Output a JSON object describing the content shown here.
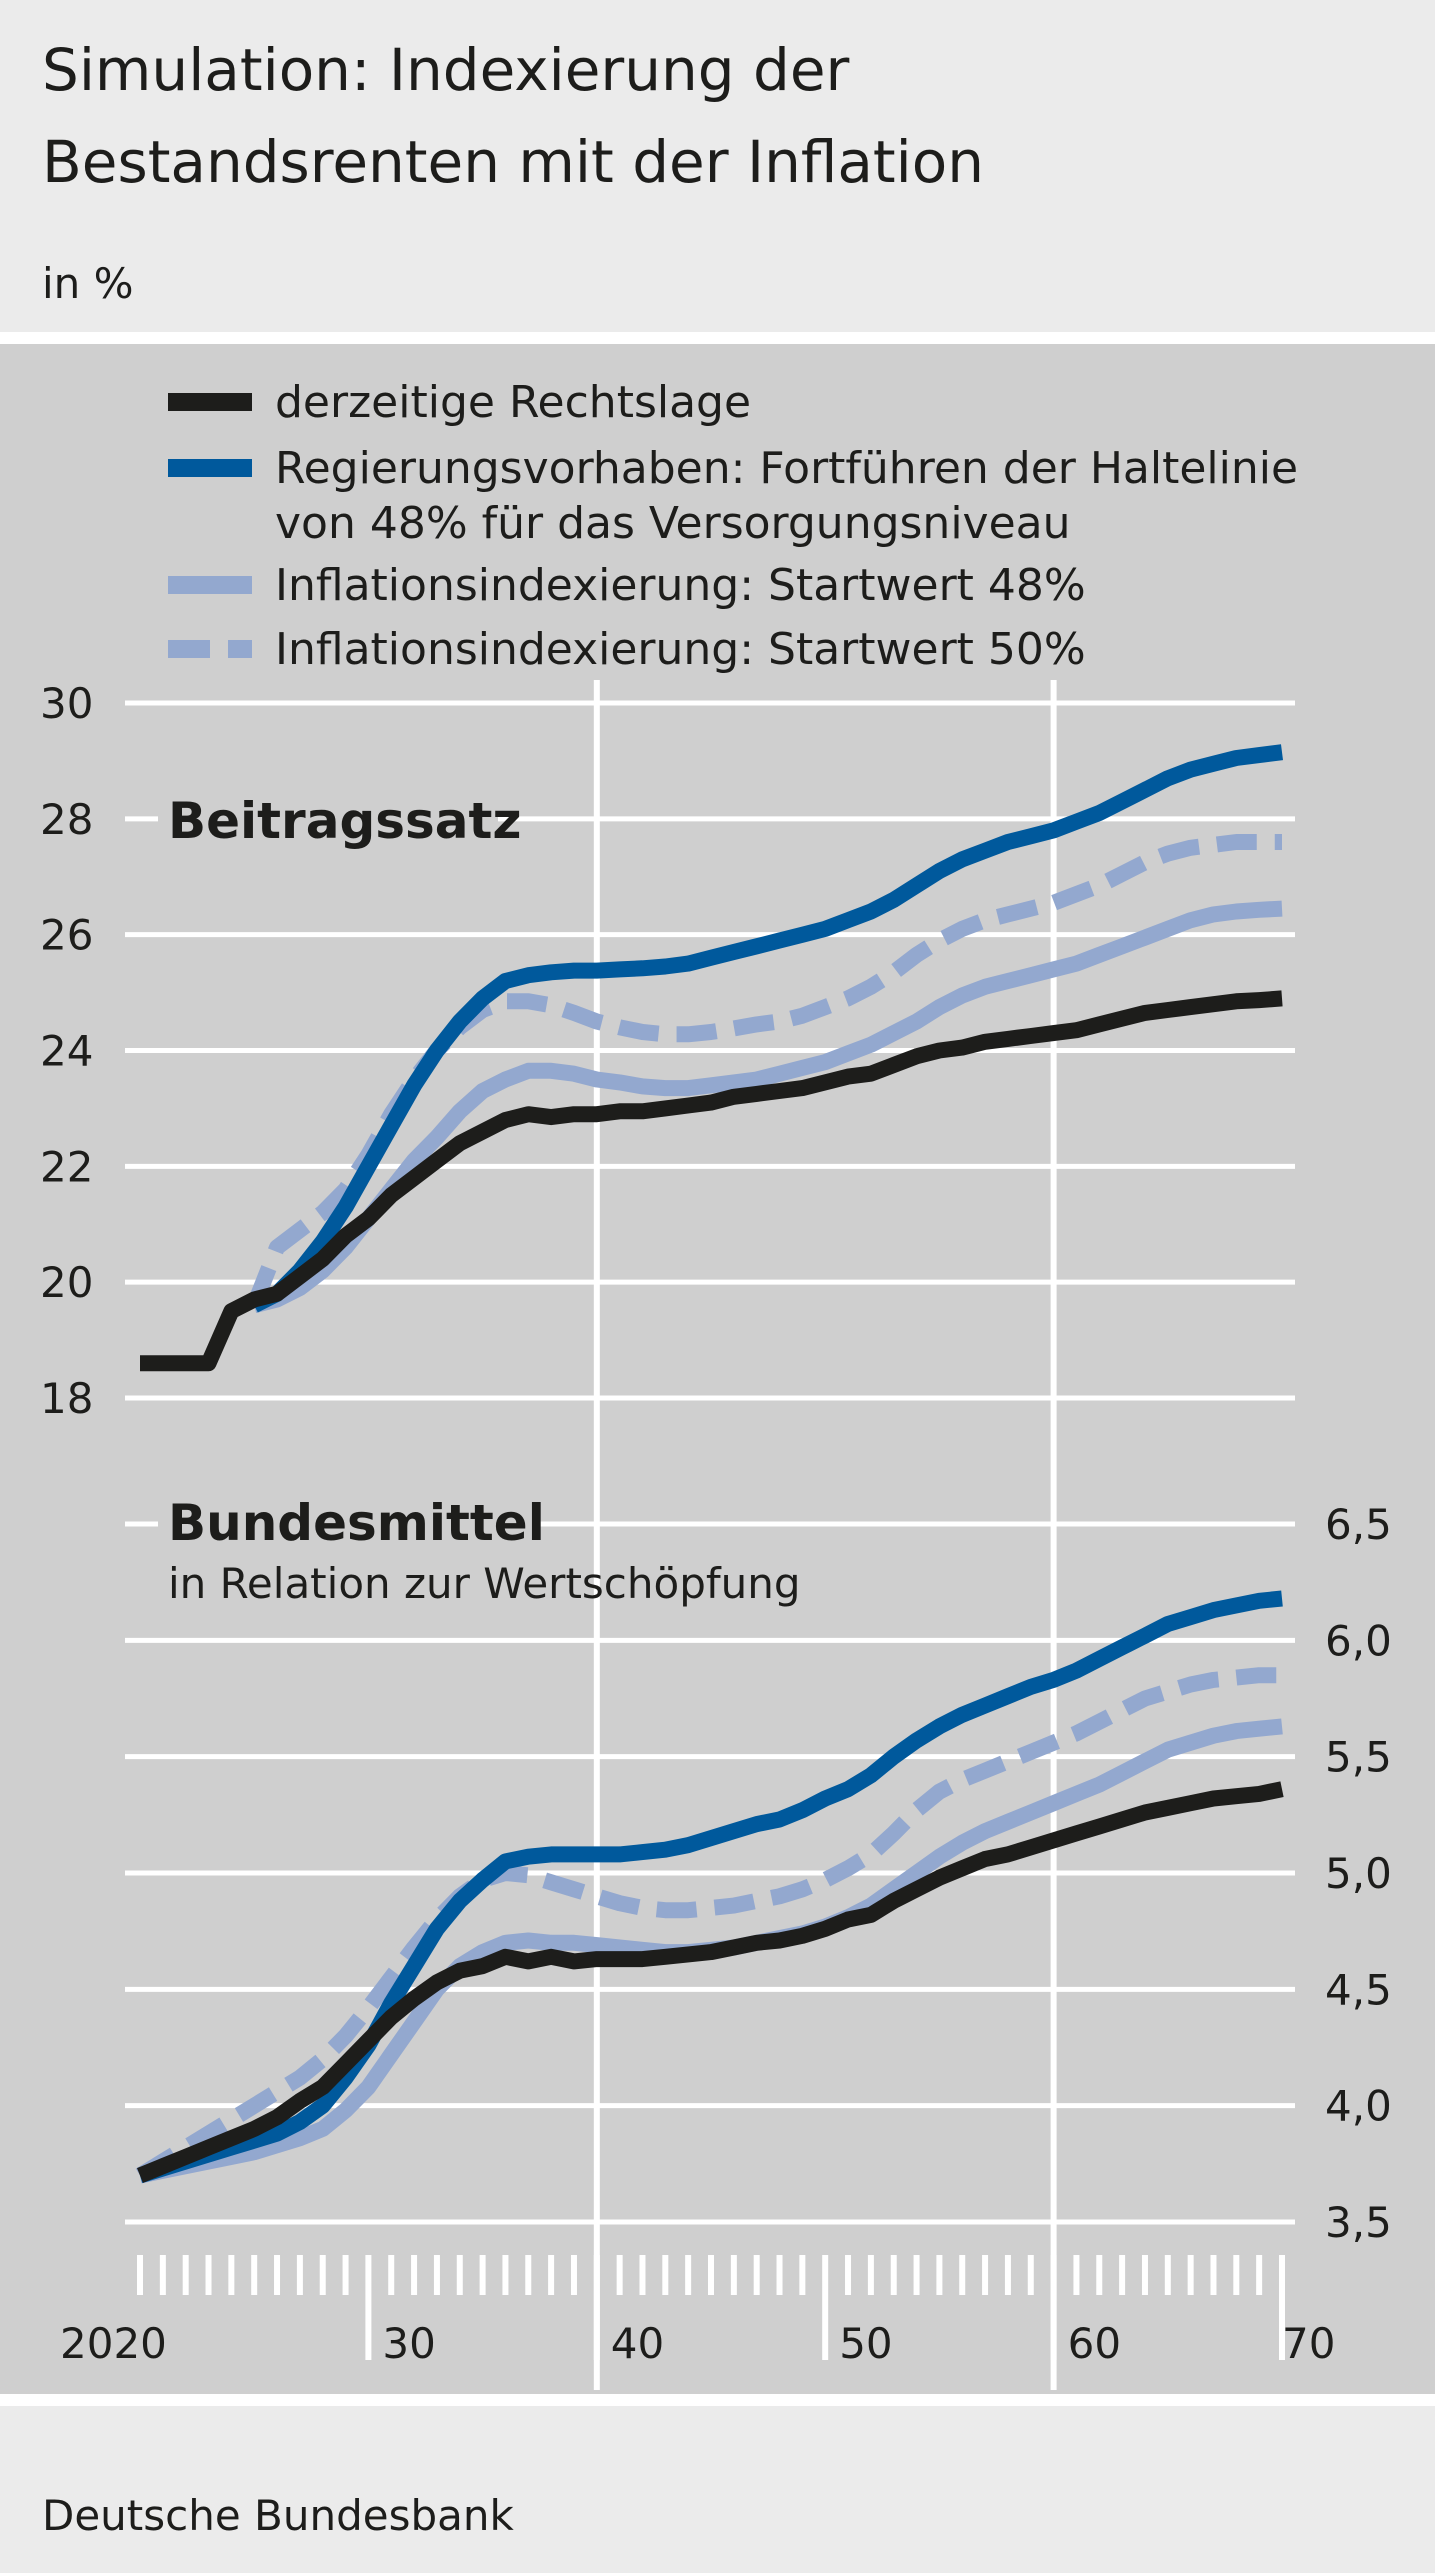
{
  "title_line1": "Simulation: Indexierung der",
  "title_line2": "Bestandsrenten mit der Inflation",
  "subtitle": "in %",
  "source": "Deutsche Bundesbank",
  "colors": {
    "rechtslage": "#1d1d1b",
    "regierung": "#00599c",
    "inflation": "#93a8cf",
    "panel_bg": "#cfcfcf",
    "outer_bg": "#ebebeb"
  },
  "legend": [
    {
      "line1": "derzeitige Rechtslage",
      "line2": ""
    },
    {
      "line1": "Regierungsvorhaben: Fortführen der Haltelinie",
      "line2": "von 48% für das Versorgungsniveau"
    },
    {
      "line1": "Inflationsindexierung: Startwert 48%",
      "line2": ""
    },
    {
      "line1": "Inflationsindexierung: Startwert 50%",
      "line2": ""
    }
  ],
  "chart_data": [
    {
      "type": "line",
      "title": "Beitragssatz",
      "y_axis_side": "left",
      "ylim": [
        18,
        30
      ],
      "yticks": [
        "18",
        "20",
        "22",
        "24",
        "26",
        "28",
        "30"
      ],
      "xlim": [
        2020,
        2070
      ],
      "xtick_labels": [
        "2020",
        "30",
        "40",
        "50",
        "60",
        "70"
      ],
      "grid": true,
      "legend_placement": "top",
      "x": [
        2020,
        2021,
        2022,
        2023,
        2024,
        2025,
        2026,
        2027,
        2028,
        2029,
        2030,
        2031,
        2032,
        2033,
        2034,
        2035,
        2036,
        2037,
        2038,
        2039,
        2040,
        2041,
        2042,
        2043,
        2044,
        2045,
        2046,
        2047,
        2048,
        2049,
        2050,
        2051,
        2052,
        2053,
        2054,
        2055,
        2056,
        2057,
        2058,
        2059,
        2060,
        2061,
        2062,
        2063,
        2064,
        2065,
        2066,
        2067,
        2068,
        2069,
        2070
      ],
      "series": [
        {
          "name": "derzeitige Rechtslage",
          "color": "#1d1d1b",
          "dash": false,
          "values": [
            18.6,
            18.6,
            18.6,
            18.6,
            19.5,
            19.7,
            19.8,
            20.1,
            20.4,
            20.8,
            21.1,
            21.5,
            21.8,
            22.1,
            22.4,
            22.6,
            22.8,
            22.9,
            22.85,
            22.9,
            22.9,
            22.95,
            22.95,
            23.0,
            23.05,
            23.1,
            23.2,
            23.25,
            23.3,
            23.35,
            23.45,
            23.55,
            23.6,
            23.75,
            23.9,
            24.0,
            24.05,
            24.15,
            24.2,
            24.25,
            24.3,
            24.35,
            24.45,
            24.55,
            24.65,
            24.7,
            24.75,
            24.8,
            24.85,
            24.87,
            24.9
          ]
        },
        {
          "name": "Regierungsvorhaben: Fortführen der Haltelinie von 48% für das Versorgungsniveau",
          "color": "#00599c",
          "dash": false,
          "values": [
            null,
            null,
            null,
            null,
            null,
            19.6,
            19.8,
            20.2,
            20.7,
            21.3,
            22.0,
            22.7,
            23.4,
            24.0,
            24.5,
            24.9,
            25.2,
            25.3,
            25.35,
            25.38,
            25.38,
            25.4,
            25.42,
            25.45,
            25.5,
            25.6,
            25.7,
            25.8,
            25.9,
            26.0,
            26.1,
            26.25,
            26.4,
            26.6,
            26.85,
            27.1,
            27.3,
            27.45,
            27.6,
            27.7,
            27.8,
            27.95,
            28.1,
            28.3,
            28.5,
            28.7,
            28.85,
            28.95,
            29.05,
            29.1,
            29.15
          ]
        },
        {
          "name": "Inflationsindexierung: Startwert 48%",
          "color": "#93a8cf",
          "dash": false,
          "values": [
            null,
            null,
            null,
            null,
            null,
            19.6,
            19.7,
            19.9,
            20.2,
            20.6,
            21.1,
            21.6,
            22.1,
            22.5,
            22.95,
            23.3,
            23.5,
            23.65,
            23.65,
            23.6,
            23.5,
            23.45,
            23.38,
            23.35,
            23.35,
            23.4,
            23.45,
            23.5,
            23.6,
            23.7,
            23.8,
            23.95,
            24.1,
            24.3,
            24.5,
            24.75,
            24.95,
            25.1,
            25.2,
            25.3,
            25.4,
            25.5,
            25.65,
            25.8,
            25.95,
            26.1,
            26.25,
            26.35,
            26.4,
            26.43,
            26.45
          ]
        },
        {
          "name": "Inflationsindexierung: Startwert 50%",
          "color": "#93a8cf",
          "dash": true,
          "values": [
            null,
            null,
            null,
            null,
            null,
            19.6,
            20.6,
            20.9,
            21.2,
            21.6,
            22.2,
            22.9,
            23.5,
            24.0,
            24.4,
            24.7,
            24.85,
            24.85,
            24.78,
            24.65,
            24.5,
            24.4,
            24.32,
            24.28,
            24.28,
            24.32,
            24.38,
            24.45,
            24.5,
            24.6,
            24.75,
            24.9,
            25.1,
            25.35,
            25.65,
            25.9,
            26.1,
            26.25,
            26.35,
            26.45,
            26.55,
            26.7,
            26.85,
            27.05,
            27.25,
            27.4,
            27.5,
            27.55,
            27.6,
            27.6,
            27.6
          ]
        }
      ]
    },
    {
      "type": "line",
      "title": "Bundesmittel",
      "subtitle": "in Relation zur Wertschöpfung",
      "y_axis_side": "right",
      "ylim": [
        3.5,
        6.5
      ],
      "yticks": [
        "3,5",
        "4,0",
        "4,5",
        "5,0",
        "5,5",
        "6,0",
        "6,5"
      ],
      "xlim": [
        2020,
        2070
      ],
      "xtick_labels": [
        "2020",
        "30",
        "40",
        "50",
        "60",
        "70"
      ],
      "grid": true,
      "x": [
        2020,
        2021,
        2022,
        2023,
        2024,
        2025,
        2026,
        2027,
        2028,
        2029,
        2030,
        2031,
        2032,
        2033,
        2034,
        2035,
        2036,
        2037,
        2038,
        2039,
        2040,
        2041,
        2042,
        2043,
        2044,
        2045,
        2046,
        2047,
        2048,
        2049,
        2050,
        2051,
        2052,
        2053,
        2054,
        2055,
        2056,
        2057,
        2058,
        2059,
        2060,
        2061,
        2062,
        2063,
        2064,
        2065,
        2066,
        2067,
        2068,
        2069,
        2070
      ],
      "series": [
        {
          "name": "derzeitige Rechtslage",
          "color": "#1d1d1b",
          "dash": false,
          "values": [
            3.7,
            3.74,
            3.78,
            3.82,
            3.86,
            3.9,
            3.95,
            4.02,
            4.08,
            4.18,
            4.28,
            4.38,
            4.46,
            4.53,
            4.58,
            4.6,
            4.64,
            4.62,
            4.64,
            4.62,
            4.63,
            4.63,
            4.63,
            4.64,
            4.65,
            4.66,
            4.68,
            4.7,
            4.71,
            4.73,
            4.76,
            4.8,
            4.82,
            4.88,
            4.93,
            4.98,
            5.02,
            5.06,
            5.08,
            5.11,
            5.14,
            5.17,
            5.2,
            5.23,
            5.26,
            5.28,
            5.3,
            5.32,
            5.33,
            5.34,
            5.36
          ]
        },
        {
          "name": "Regierungsvorhaben: Fortführen der Haltelinie von 48% für das Versorgungsniveau",
          "color": "#00599c",
          "dash": false,
          "values": [
            3.7,
            3.73,
            3.76,
            3.79,
            3.82,
            3.85,
            3.88,
            3.93,
            4.0,
            4.12,
            4.26,
            4.44,
            4.6,
            4.76,
            4.88,
            4.97,
            5.05,
            5.07,
            5.08,
            5.08,
            5.08,
            5.08,
            5.09,
            5.1,
            5.12,
            5.15,
            5.18,
            5.21,
            5.23,
            5.27,
            5.32,
            5.36,
            5.42,
            5.5,
            5.57,
            5.63,
            5.68,
            5.72,
            5.76,
            5.8,
            5.83,
            5.87,
            5.92,
            5.97,
            6.02,
            6.07,
            6.1,
            6.13,
            6.15,
            6.17,
            6.18
          ]
        },
        {
          "name": "Inflationsindexierung: Startwert 48%",
          "color": "#93a8cf",
          "dash": false,
          "values": [
            3.7,
            3.72,
            3.74,
            3.76,
            3.78,
            3.8,
            3.83,
            3.86,
            3.9,
            3.98,
            4.08,
            4.22,
            4.36,
            4.5,
            4.6,
            4.66,
            4.7,
            4.71,
            4.7,
            4.7,
            4.69,
            4.68,
            4.67,
            4.66,
            4.66,
            4.67,
            4.68,
            4.7,
            4.72,
            4.74,
            4.77,
            4.81,
            4.86,
            4.93,
            5.0,
            5.07,
            5.13,
            5.18,
            5.22,
            5.26,
            5.3,
            5.34,
            5.38,
            5.43,
            5.48,
            5.53,
            5.56,
            5.59,
            5.61,
            5.62,
            5.63
          ]
        },
        {
          "name": "Inflationsindexierung: Startwert 50%",
          "color": "#93a8cf",
          "dash": true,
          "values": [
            3.7,
            3.76,
            3.82,
            3.88,
            3.94,
            4.0,
            4.06,
            4.12,
            4.2,
            4.3,
            4.42,
            4.55,
            4.68,
            4.8,
            4.9,
            4.97,
            5.0,
            4.99,
            4.96,
            4.93,
            4.9,
            4.87,
            4.85,
            4.84,
            4.84,
            4.85,
            4.86,
            4.88,
            4.9,
            4.93,
            4.97,
            5.02,
            5.08,
            5.17,
            5.27,
            5.35,
            5.4,
            5.44,
            5.48,
            5.52,
            5.56,
            5.6,
            5.65,
            5.7,
            5.75,
            5.78,
            5.81,
            5.83,
            5.84,
            5.85,
            5.85
          ]
        }
      ]
    }
  ]
}
